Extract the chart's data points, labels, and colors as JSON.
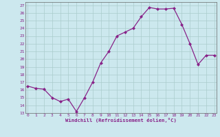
{
  "x_data": [
    0,
    1,
    2,
    3,
    4,
    5,
    6,
    7,
    8,
    9,
    10,
    11,
    12,
    13,
    14,
    15,
    16,
    17,
    18,
    19,
    20,
    21,
    22,
    23
  ],
  "y_data": [
    16.5,
    16.2,
    16.1,
    15.0,
    14.5,
    14.8,
    13.2,
    15.0,
    17.0,
    19.5,
    21.0,
    23.0,
    23.5,
    24.0,
    25.5,
    26.7,
    26.5,
    26.5,
    26.6,
    24.5,
    22.0,
    19.3,
    20.5,
    20.5
  ],
  "xlabel": "Windchill (Refroidissement éolien,°C)",
  "yticks": [
    13,
    14,
    15,
    16,
    17,
    18,
    19,
    20,
    21,
    22,
    23,
    24,
    25,
    26,
    27
  ],
  "xticks": [
    0,
    1,
    2,
    3,
    4,
    5,
    6,
    7,
    8,
    9,
    10,
    11,
    12,
    13,
    14,
    15,
    16,
    17,
    18,
    19,
    20,
    21,
    22,
    23
  ],
  "line_color": "#882288",
  "marker": "D",
  "marker_size": 2.0,
  "bg_color": "#cce8ee",
  "grid_color": "#aacccc",
  "tick_color": "#882288",
  "xlabel_color": "#882288",
  "line_width": 0.9,
  "ylim_min": 13,
  "ylim_max": 27.4,
  "xlim_min": -0.3,
  "xlim_max": 23.3
}
